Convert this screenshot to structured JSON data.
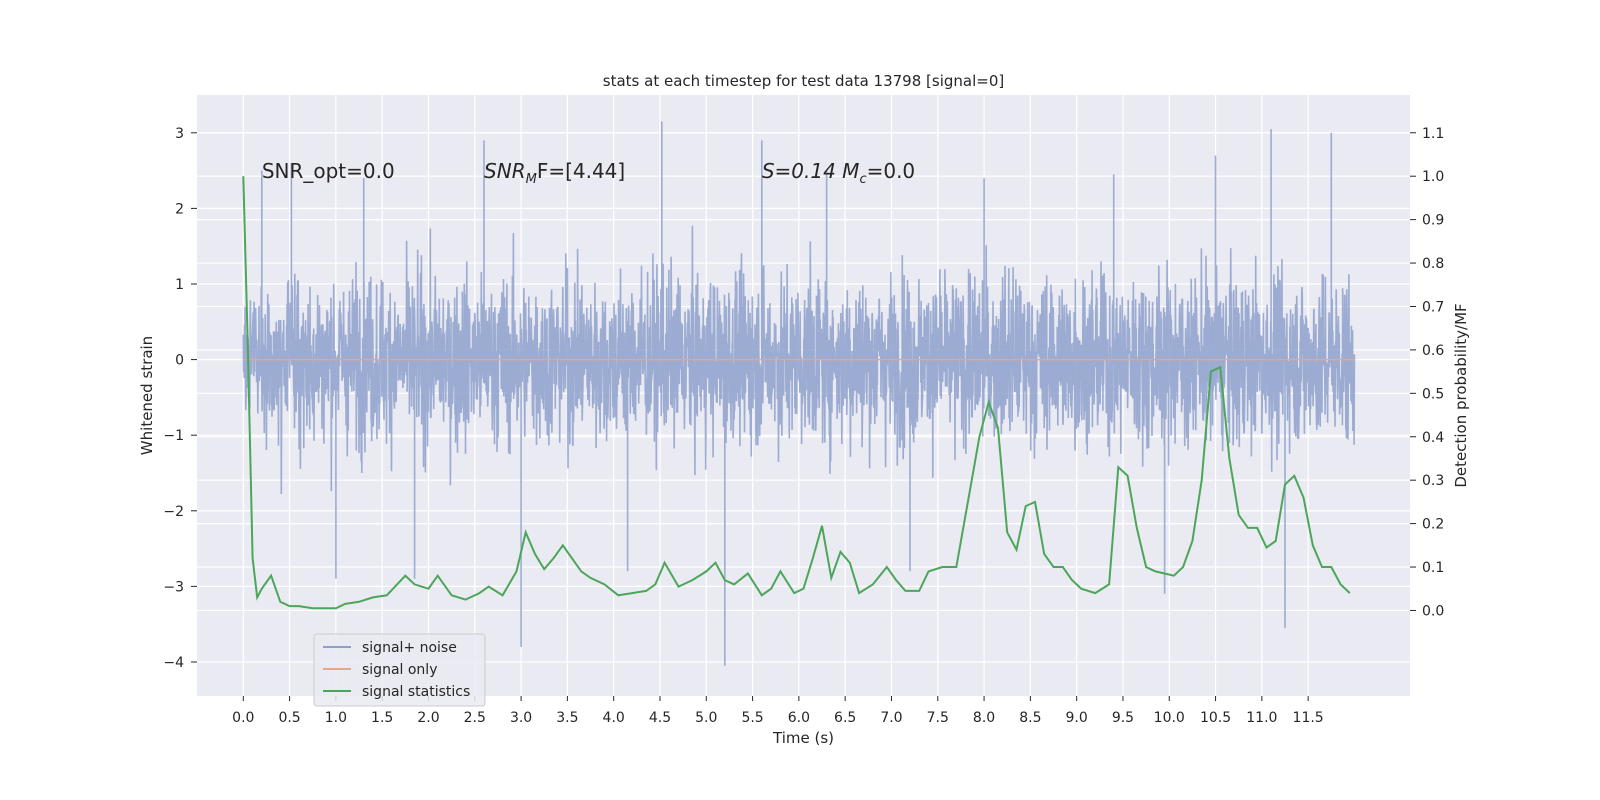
{
  "chart_data": {
    "type": "line",
    "title": "stats at each timestep for test data 13798 [signal=0]",
    "xlabel": "Time (s)",
    "ylabel_left": "Whitened strain",
    "ylabel_right": "Detection probability/MF",
    "xlim": [
      -0.5,
      12.6
    ],
    "ylim_left": [
      -4.45,
      3.5
    ],
    "ylim_right": [
      -0.197,
      1.187
    ],
    "x_ticks": [
      0.0,
      0.5,
      1.0,
      1.5,
      2.0,
      2.5,
      3.0,
      3.5,
      4.0,
      4.5,
      5.0,
      5.5,
      6.0,
      6.5,
      7.0,
      7.5,
      8.0,
      8.5,
      9.0,
      9.5,
      10.0,
      10.5,
      11.0,
      11.5
    ],
    "x_tick_labels": [
      "0.0",
      "0.5",
      "1.0",
      "1.5",
      "2.0",
      "2.5",
      "3.0",
      "3.5",
      "4.0",
      "4.5",
      "5.0",
      "5.5",
      "6.0",
      "6.5",
      "7.0",
      "7.5",
      "8.0",
      "8.5",
      "9.0",
      "9.5",
      "10.0",
      "10.5",
      "11.0",
      "11.5"
    ],
    "y_left_ticks": [
      -4,
      -3,
      -2,
      -1,
      0,
      1,
      2,
      3
    ],
    "y_left_tick_labels": [
      "−4",
      "−3",
      "−2",
      "−1",
      "0",
      "1",
      "2",
      "3"
    ],
    "y_right_ticks": [
      0.0,
      0.1,
      0.2,
      0.3,
      0.4,
      0.5,
      0.6,
      0.7,
      0.8,
      0.9,
      1.0,
      1.1
    ],
    "y_right_tick_labels": [
      "0.0",
      "0.1",
      "0.2",
      "0.3",
      "0.4",
      "0.5",
      "0.6",
      "0.7",
      "0.8",
      "0.9",
      "1.0",
      "1.1"
    ],
    "grid": true,
    "legend_position": "lower-left",
    "annotations": [
      {
        "text": "SNR_opt=0.0",
        "x": 0.2,
        "y": 2.4
      },
      {
        "text": "SNR",
        "sub": "M",
        "rest": "F=[4.44]",
        "x": 2.6,
        "y": 2.4
      },
      {
        "text": "S=0.14   M",
        "sub": "c",
        "rest": "=0.0",
        "x": 5.6,
        "y": 2.4
      }
    ],
    "series": [
      {
        "name": "signal+ noise",
        "axis": "left",
        "color": "#8da0cb",
        "kind": "noise",
        "t_range": [
          0.0,
          12.0
        ],
        "amplitude_envelope": 1.2,
        "spikes": [
          {
            "t": 0.2,
            "v": 2.5
          },
          {
            "t": 0.52,
            "v": 2.6
          },
          {
            "t": 1.0,
            "v": -2.9
          },
          {
            "t": 1.3,
            "v": 2.4
          },
          {
            "t": 1.85,
            "v": -2.9
          },
          {
            "t": 2.6,
            "v": 2.9
          },
          {
            "t": 3.0,
            "v": -3.8
          },
          {
            "t": 4.15,
            "v": -2.8
          },
          {
            "t": 4.52,
            "v": 3.15
          },
          {
            "t": 5.2,
            "v": -4.05
          },
          {
            "t": 5.6,
            "v": 2.9
          },
          {
            "t": 6.3,
            "v": 2.5
          },
          {
            "t": 7.2,
            "v": -2.8
          },
          {
            "t": 8.0,
            "v": 2.4
          },
          {
            "t": 9.4,
            "v": 2.45
          },
          {
            "t": 9.95,
            "v": -3.1
          },
          {
            "t": 10.5,
            "v": 2.7
          },
          {
            "t": 11.1,
            "v": 3.05
          },
          {
            "t": 11.25,
            "v": -3.55
          },
          {
            "t": 11.75,
            "v": 3.0
          }
        ]
      },
      {
        "name": "signal only",
        "axis": "left",
        "color": "#e8a58a",
        "x": [
          0.0,
          12.0
        ],
        "y": [
          0.0,
          0.0
        ]
      },
      {
        "name": "signal statistics",
        "axis": "right",
        "color": "#4ca65a",
        "x": [
          0.0,
          0.05,
          0.1,
          0.15,
          0.2,
          0.3,
          0.4,
          0.5,
          0.6,
          0.75,
          1.0,
          1.1,
          1.25,
          1.4,
          1.55,
          1.75,
          1.85,
          2.0,
          2.1,
          2.25,
          2.4,
          2.55,
          2.65,
          2.8,
          2.95,
          3.05,
          3.15,
          3.25,
          3.35,
          3.45,
          3.55,
          3.65,
          3.75,
          3.9,
          4.05,
          4.2,
          4.35,
          4.45,
          4.55,
          4.7,
          4.85,
          5.0,
          5.1,
          5.2,
          5.3,
          5.45,
          5.6,
          5.7,
          5.8,
          5.95,
          6.05,
          6.15,
          6.25,
          6.35,
          6.45,
          6.55,
          6.65,
          6.8,
          6.95,
          7.05,
          7.15,
          7.3,
          7.4,
          7.55,
          7.7,
          7.85,
          7.95,
          8.05,
          8.15,
          8.25,
          8.35,
          8.45,
          8.55,
          8.65,
          8.75,
          8.85,
          8.95,
          9.05,
          9.2,
          9.35,
          9.45,
          9.55,
          9.65,
          9.75,
          9.85,
          9.95,
          10.05,
          10.15,
          10.25,
          10.35,
          10.45,
          10.55,
          10.65,
          10.75,
          10.85,
          10.95,
          11.05,
          11.15,
          11.25,
          11.35,
          11.45,
          11.55,
          11.65,
          11.75,
          11.85,
          11.95
        ],
        "y": [
          1.0,
          0.6,
          0.12,
          0.03,
          0.05,
          0.08,
          0.02,
          0.01,
          0.01,
          0.005,
          0.005,
          0.015,
          0.02,
          0.03,
          0.035,
          0.08,
          0.06,
          0.05,
          0.08,
          0.035,
          0.025,
          0.04,
          0.055,
          0.035,
          0.09,
          0.18,
          0.13,
          0.095,
          0.12,
          0.15,
          0.12,
          0.09,
          0.075,
          0.06,
          0.035,
          0.04,
          0.045,
          0.06,
          0.11,
          0.055,
          0.07,
          0.09,
          0.11,
          0.07,
          0.06,
          0.085,
          0.035,
          0.05,
          0.09,
          0.04,
          0.05,
          0.12,
          0.195,
          0.075,
          0.135,
          0.11,
          0.04,
          0.06,
          0.1,
          0.07,
          0.045,
          0.045,
          0.09,
          0.1,
          0.1,
          0.28,
          0.4,
          0.48,
          0.42,
          0.18,
          0.14,
          0.24,
          0.25,
          0.13,
          0.1,
          0.1,
          0.07,
          0.05,
          0.04,
          0.06,
          0.33,
          0.31,
          0.19,
          0.1,
          0.09,
          0.085,
          0.08,
          0.1,
          0.16,
          0.3,
          0.55,
          0.56,
          0.35,
          0.22,
          0.19,
          0.19,
          0.145,
          0.16,
          0.29,
          0.31,
          0.26,
          0.15,
          0.1,
          0.1,
          0.06,
          0.04
        ]
      }
    ]
  }
}
